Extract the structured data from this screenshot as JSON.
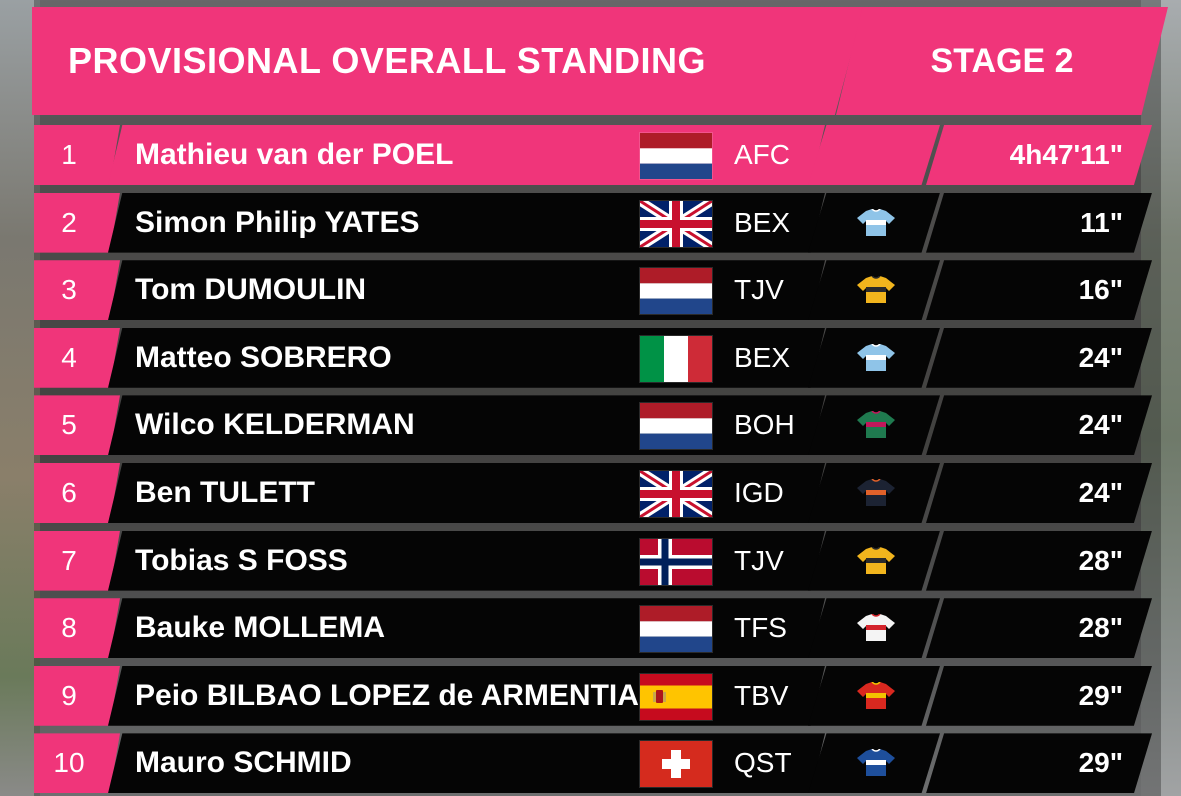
{
  "header": {
    "title": "PROVISIONAL OVERALL STANDING",
    "stage": "STAGE 2"
  },
  "colors": {
    "accent": "#f0357a",
    "row_bg": "#050505"
  },
  "standings": [
    {
      "pos": "1",
      "name": "Mathieu van der POEL",
      "flag": "netherlands",
      "team": "AFC",
      "jersey": "",
      "time": "4h47'11\""
    },
    {
      "pos": "2",
      "name": "Simon Philip YATES",
      "flag": "great-britain",
      "team": "BEX",
      "jersey": "light-blue",
      "time": "11\""
    },
    {
      "pos": "3",
      "name": "Tom DUMOULIN",
      "flag": "netherlands",
      "team": "TJV",
      "jersey": "yellow",
      "time": "16\""
    },
    {
      "pos": "4",
      "name": "Matteo SOBRERO",
      "flag": "italy",
      "team": "BEX",
      "jersey": "light-blue",
      "time": "24\""
    },
    {
      "pos": "5",
      "name": "Wilco KELDERMAN",
      "flag": "netherlands",
      "team": "BOH",
      "jersey": "green",
      "time": "24\""
    },
    {
      "pos": "6",
      "name": "Ben TULETT",
      "flag": "great-britain",
      "team": "IGD",
      "jersey": "dark-navy",
      "time": "24\""
    },
    {
      "pos": "7",
      "name": "Tobias S FOSS",
      "flag": "norway",
      "team": "TJV",
      "jersey": "yellow",
      "time": "28\""
    },
    {
      "pos": "8",
      "name": "Bauke MOLLEMA",
      "flag": "netherlands",
      "team": "TFS",
      "jersey": "white-red",
      "time": "28\""
    },
    {
      "pos": "9",
      "name": "Peio BILBAO LOPEZ de ARMENTIA",
      "flag": "spain",
      "team": "TBV",
      "jersey": "red",
      "time": "29\""
    },
    {
      "pos": "10",
      "name": "Mauro SCHMID",
      "flag": "switzerland",
      "team": "QST",
      "jersey": "blue",
      "time": "29\""
    }
  ]
}
